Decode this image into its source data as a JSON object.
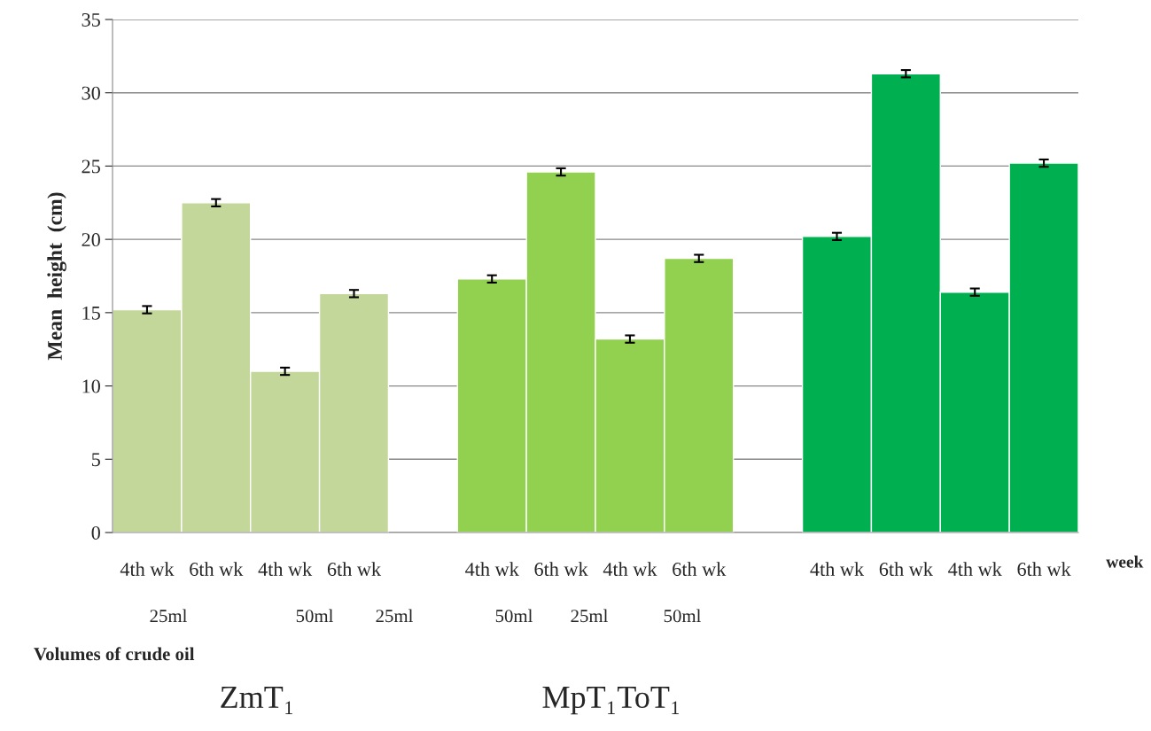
{
  "chart_data": {
    "type": "bar",
    "ylabel": "Mean  height  (cm)",
    "xlabel": "week",
    "categories": [
      "4th wk",
      "6th wk",
      "4th wk",
      "6th wk",
      null,
      "4th wk",
      "6th wk",
      "4th wk",
      "6th wk",
      null,
      "4th wk",
      "6th wk",
      "4th wk",
      "6th wk"
    ],
    "values": [
      15.2,
      22.5,
      11.0,
      16.3,
      null,
      17.3,
      24.6,
      13.2,
      18.7,
      null,
      20.2,
      31.3,
      16.4,
      25.2
    ],
    "errors": [
      0.25,
      0.25,
      0.25,
      0.25,
      null,
      0.25,
      0.25,
      0.25,
      0.25,
      null,
      0.25,
      0.25,
      0.25,
      0.25
    ],
    "colors": [
      "#c4d79b",
      "#c4d79b",
      "#c4d79b",
      "#c4d79b",
      "#ffffff",
      "#92d050",
      "#92d050",
      "#92d050",
      "#92d050",
      "#ffffff",
      "#00b050",
      "#00b050",
      "#00b050",
      "#00b050"
    ],
    "ylim": [
      0,
      35
    ],
    "yticks": [
      0,
      5,
      10,
      15,
      20,
      25,
      30,
      35
    ],
    "grid": "y",
    "legend": false,
    "annotations": [
      "25ml",
      "50ml",
      "25ml",
      "50ml",
      "25ml",
      "50ml",
      "Volumes of crude oil",
      "ZmT₁",
      "MpT₁ToT₁"
    ]
  }
}
